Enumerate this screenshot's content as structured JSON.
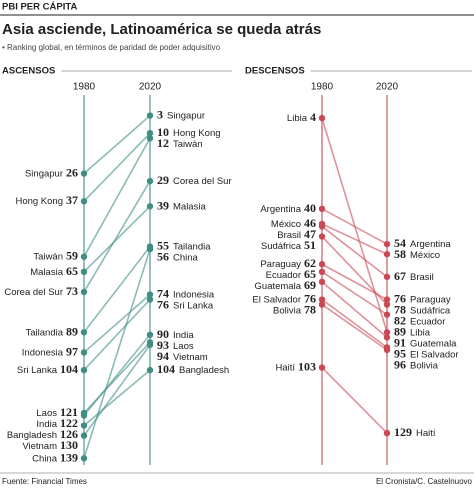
{
  "header": {
    "kicker": "PBI PER CÁPITA",
    "title": "Asia asciende, Latinoamérica se queda atrás",
    "subtitle": "• Ranking global, en términos de paridad de poder adquisitivo"
  },
  "footer": {
    "source": "Fuente: Financial Times",
    "credit": "El Cronista/C. Castelnuovo"
  },
  "chart_data": [
    {
      "type": "slope",
      "title": "ASCENSOS",
      "color": "#3f8d83",
      "categories": [
        "Singapur",
        "Hong Kong",
        "Taiwán",
        "Corea del Sur",
        "Malasia",
        "Tailandia",
        "China",
        "Indonesia",
        "Sri Lanka",
        "India",
        "Laos",
        "Vietnam",
        "Bangladesh"
      ],
      "series": [
        {
          "name": "1980",
          "values": [
            26,
            37,
            59,
            73,
            65,
            89,
            139,
            97,
            104,
            122,
            121,
            130,
            126
          ]
        },
        {
          "name": "2020",
          "values": [
            3,
            10,
            12,
            29,
            39,
            55,
            56,
            74,
            76,
            90,
            93,
            94,
            104
          ]
        }
      ]
    },
    {
      "type": "slope",
      "title": "DESCENSOS",
      "color": "#c94a55",
      "categories": [
        "Libia",
        "Argentina",
        "México",
        "Brasil",
        "Sudáfrica",
        "Paraguay",
        "Ecuador",
        "Guatemala",
        "El Salvador",
        "Bolivia",
        "Haití"
      ],
      "series": [
        {
          "name": "1980",
          "values": [
            4,
            40,
            46,
            47,
            51,
            62,
            65,
            69,
            76,
            78,
            103
          ]
        },
        {
          "name": "2020",
          "values": [
            89,
            54,
            58,
            67,
            78,
            76,
            82,
            91,
            95,
            96,
            129
          ]
        }
      ]
    }
  ]
}
